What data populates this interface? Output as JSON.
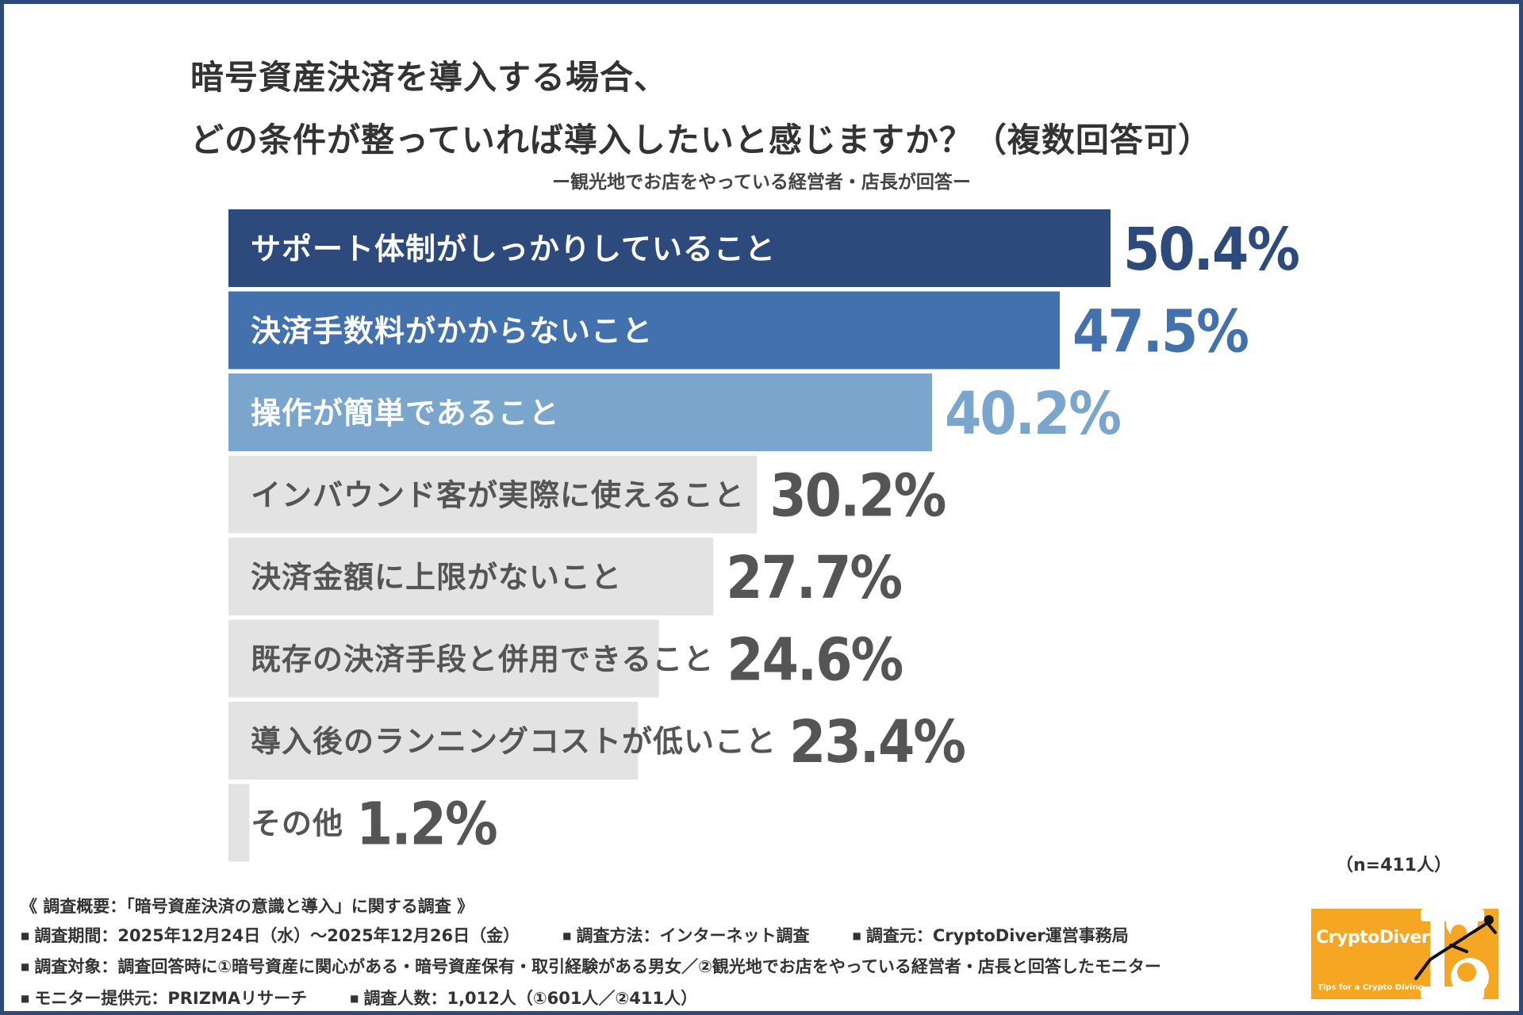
{
  "title": {
    "line1": "暗号資産決済を導入する場合、",
    "line2": "どの条件が整っていれば導入したいと感じますか？（複数回答可）"
  },
  "subtitle": "ー観光地でお店をやっている経営者・店長が回答ー",
  "colors": {
    "frame": "#2d4a7d",
    "bar1": "#2d4a7d",
    "bar2": "#4271ad",
    "bar3": "#7aa5cc",
    "bar_other": "#e3e3e3",
    "text_other": "#555555"
  },
  "chart_data": {
    "type": "bar",
    "orientation": "horizontal",
    "unit": "%",
    "categories": [
      "サポート体制がしっかりしていること",
      "決済手数料がかからないこと",
      "操作が簡単であること",
      "インバウンド客が実際に使えること",
      "決済金額に上限がないこと",
      "既存の決済手段と併用できること",
      "導入後のランニングコストが低いこと",
      "その他"
    ],
    "values": [
      50.4,
      47.5,
      40.2,
      30.2,
      27.7,
      24.6,
      23.4,
      1.2
    ],
    "value_labels": [
      "50.4%",
      "47.5%",
      "40.2%",
      "30.2%",
      "27.7%",
      "24.6%",
      "23.4%",
      "1.2%"
    ],
    "xlim": [
      0,
      50.4
    ],
    "grid": false
  },
  "sample_note": "（n=411人）",
  "footer": {
    "heading": "《 調査概要：「暗号資産決済の意識と導入」に関する調査 》",
    "period": "調査期間：2025年12月24日（水）〜2025年12月26日（金）",
    "method": "調査方法：インターネット調査",
    "organizer": "調査元：CryptoDiver運営事務局",
    "target": "調査対象：調査回答時に①暗号資産に関心がある・暗号資産保有・取引経験がある男女／②観光地でお店をやっている経営者・店長と回答したモニター",
    "provider": "モニター提供元：PRIZMAリサーチ",
    "count": "調査人数：1,012人（①601人／②411人）"
  },
  "logo": {
    "name": "CryptoDiver",
    "tagline": "Tips for a Crypto Diving",
    "color": "#f5a623"
  }
}
